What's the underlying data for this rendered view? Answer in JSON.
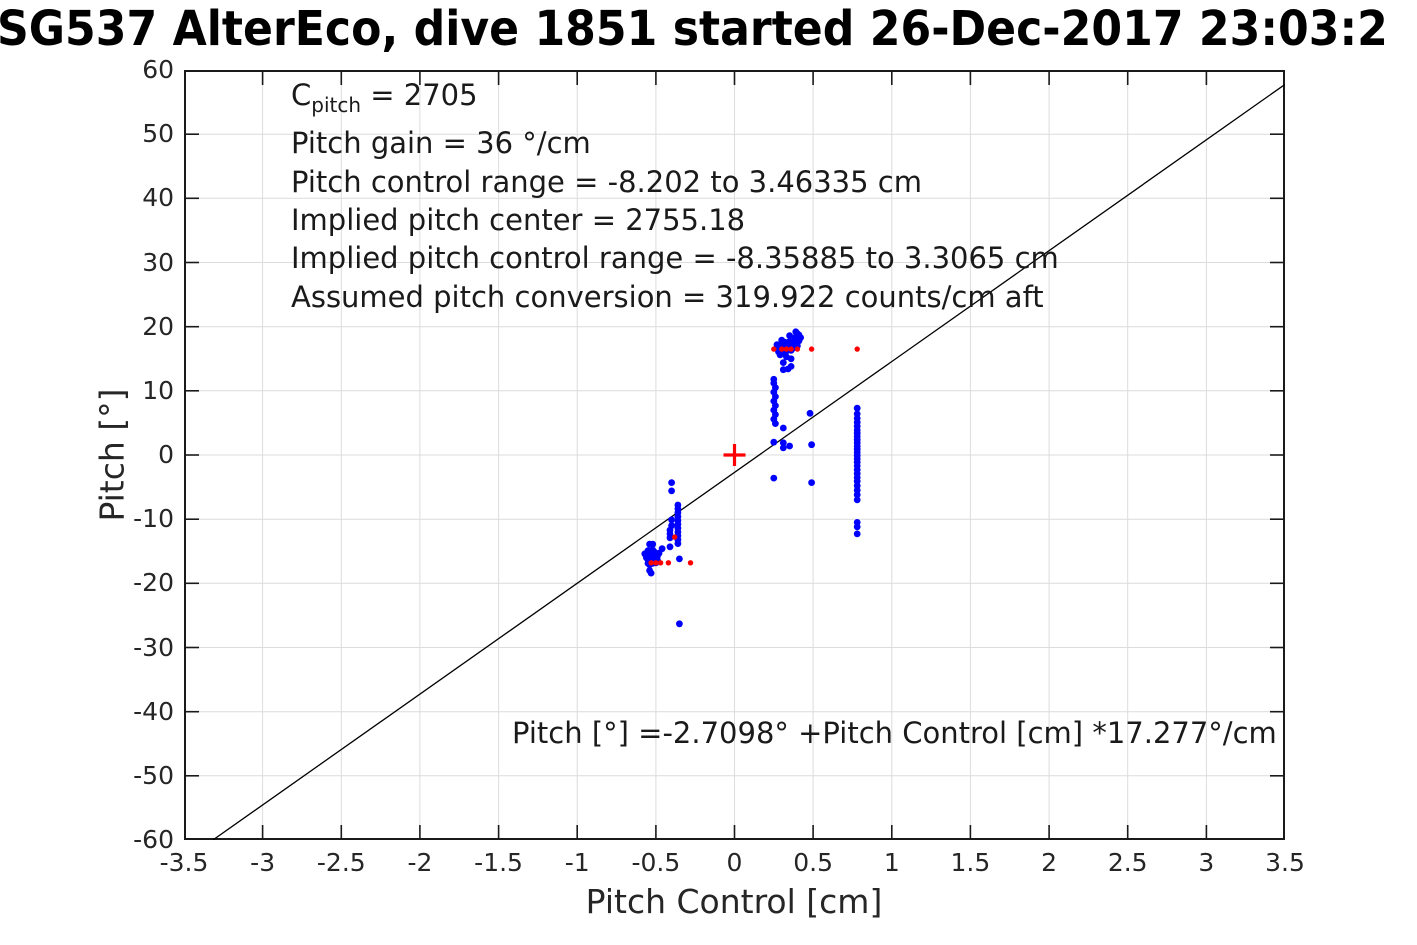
{
  "title": "SG537 AlterEco, dive 1851 started 26-Dec-2017 23:03:2",
  "chart_data": {
    "type": "scatter",
    "title": "SG537 AlterEco, dive 1851 started 26-Dec-2017 23:03:2",
    "xlabel": "Pitch Control [cm]",
    "ylabel": "Pitch [°]",
    "xlim": [
      -3.5,
      3.5
    ],
    "ylim": [
      -60,
      60
    ],
    "grid": true,
    "legend": "none",
    "xticks": [
      -3.5,
      -3,
      -2.5,
      -2,
      -1.5,
      -1,
      -0.5,
      0,
      0.5,
      1,
      1.5,
      2,
      2.5,
      3,
      3.5
    ],
    "xtick_labels": [
      "-3.5",
      "-3",
      "-2.5",
      "-2",
      "-1.5",
      "-1",
      "-0.5",
      "0",
      "0.5",
      "1",
      "1.5",
      "2",
      "2.5",
      "3",
      "3.5"
    ],
    "yticks": [
      -60,
      -50,
      -40,
      -30,
      -20,
      -10,
      0,
      10,
      20,
      30,
      40,
      50,
      60
    ],
    "ytick_labels": [
      "-60",
      "-50",
      "-40",
      "-30",
      "-20",
      "-10",
      "0",
      "10",
      "20",
      "30",
      "40",
      "50",
      "60"
    ],
    "colors": {
      "blue_marker": "#0000ff",
      "red_marker": "#ff0000",
      "fit_line": "#000000",
      "grid": "#dcdcdc",
      "axis": "#1a1a1a"
    },
    "annotations": {
      "info_lines": [
        {
          "segments": [
            [
              "C",
              false
            ],
            [
              "pitch",
              true
            ],
            [
              " = 2705",
              false
            ]
          ]
        },
        {
          "segments": [
            [
              "Pitch gain = 36 °/cm",
              false
            ]
          ]
        },
        {
          "segments": [
            [
              "Pitch control range = -8.202 to 3.46335 cm",
              false
            ]
          ]
        },
        {
          "segments": [
            [
              "Implied pitch center = 2755.18",
              false
            ]
          ]
        },
        {
          "segments": [
            [
              "Implied pitch control range = -8.35885 to 3.3065 cm",
              false
            ]
          ]
        },
        {
          "segments": [
            [
              "Assumed pitch conversion = 319.922 counts/cm aft",
              false
            ]
          ]
        }
      ],
      "fit_equation": "Pitch [°] =-2.7098° +Pitch Control [cm] *17.277°/cm"
    },
    "fit_line": {
      "slope": 17.277,
      "intercept": -2.7098
    },
    "series": [
      {
        "name": "blue_points",
        "marker": "dot",
        "color": "#0000ff",
        "marker_radius": 3.4,
        "points": [
          [
            0.27,
            17.2
          ],
          [
            0.28,
            16.7
          ],
          [
            0.28,
            16.1
          ],
          [
            0.29,
            15.6
          ],
          [
            0.3,
            17.9
          ],
          [
            0.3,
            17.1
          ],
          [
            0.31,
            16.5
          ],
          [
            0.31,
            15.9
          ],
          [
            0.31,
            14.4
          ],
          [
            0.31,
            13.3
          ],
          [
            0.32,
            17.6
          ],
          [
            0.32,
            16.9
          ],
          [
            0.33,
            16.2
          ],
          [
            0.33,
            15.3
          ],
          [
            0.34,
            17.1
          ],
          [
            0.34,
            16.5
          ],
          [
            0.34,
            13.4
          ],
          [
            0.35,
            18.6
          ],
          [
            0.35,
            17.7
          ],
          [
            0.35,
            16.9
          ],
          [
            0.36,
            16.3
          ],
          [
            0.36,
            15.0
          ],
          [
            0.36,
            13.8
          ],
          [
            0.37,
            17.3
          ],
          [
            0.37,
            16.6
          ],
          [
            0.38,
            17.9
          ],
          [
            0.38,
            17.0
          ],
          [
            0.39,
            19.2
          ],
          [
            0.39,
            18.4
          ],
          [
            0.39,
            17.5
          ],
          [
            0.4,
            18.9
          ],
          [
            0.4,
            17.9
          ],
          [
            0.4,
            17.0
          ],
          [
            0.41,
            18.7
          ],
          [
            0.41,
            17.8
          ],
          [
            0.42,
            18.3
          ],
          [
            0.25,
            11.8
          ],
          [
            0.25,
            11.2
          ],
          [
            0.26,
            10.5
          ],
          [
            0.25,
            9.8
          ],
          [
            0.26,
            9.1
          ],
          [
            0.25,
            8.4
          ],
          [
            0.26,
            7.7
          ],
          [
            0.25,
            7.0
          ],
          [
            0.26,
            6.3
          ],
          [
            0.25,
            5.6
          ],
          [
            0.26,
            4.9
          ],
          [
            0.25,
            2.0
          ],
          [
            0.25,
            -3.6
          ],
          [
            0.31,
            4.2
          ],
          [
            0.31,
            1.9
          ],
          [
            0.31,
            1.1
          ],
          [
            0.35,
            1.4
          ],
          [
            0.48,
            6.5
          ],
          [
            0.49,
            1.6
          ],
          [
            0.49,
            -4.3
          ],
          [
            0.78,
            7.3
          ],
          [
            0.78,
            6.4
          ],
          [
            0.78,
            5.7
          ],
          [
            0.78,
            5.1
          ],
          [
            0.78,
            4.5
          ],
          [
            0.78,
            3.9
          ],
          [
            0.78,
            3.4
          ],
          [
            0.78,
            2.9
          ],
          [
            0.78,
            2.4
          ],
          [
            0.78,
            1.9
          ],
          [
            0.78,
            1.4
          ],
          [
            0.78,
            0.9
          ],
          [
            0.78,
            0.4
          ],
          [
            0.78,
            -0.1
          ],
          [
            0.78,
            -0.6
          ],
          [
            0.78,
            -1.1
          ],
          [
            0.78,
            -1.7
          ],
          [
            0.78,
            -2.3
          ],
          [
            0.78,
            -2.9
          ],
          [
            0.78,
            -3.5
          ],
          [
            0.78,
            -4.1
          ],
          [
            0.78,
            -4.8
          ],
          [
            0.78,
            -5.5
          ],
          [
            0.78,
            -6.2
          ],
          [
            0.78,
            -7.0
          ],
          [
            0.78,
            -10.5
          ],
          [
            0.78,
            -11.2
          ],
          [
            0.78,
            -12.3
          ],
          [
            -0.57,
            -15.4
          ],
          [
            -0.56,
            -16.0
          ],
          [
            -0.55,
            -14.9
          ],
          [
            -0.55,
            -15.6
          ],
          [
            -0.55,
            -16.3
          ],
          [
            -0.55,
            -16.9
          ],
          [
            -0.54,
            -13.9
          ],
          [
            -0.54,
            -15.2
          ],
          [
            -0.54,
            -15.8
          ],
          [
            -0.54,
            -16.5
          ],
          [
            -0.54,
            -17.1
          ],
          [
            -0.54,
            -18.0
          ],
          [
            -0.53,
            -15.4
          ],
          [
            -0.53,
            -16.1
          ],
          [
            -0.53,
            -16.7
          ],
          [
            -0.53,
            -18.4
          ],
          [
            -0.52,
            -13.9
          ],
          [
            -0.52,
            -14.8
          ],
          [
            -0.52,
            -15.6
          ],
          [
            -0.52,
            -16.3
          ],
          [
            -0.52,
            -16.9
          ],
          [
            -0.51,
            -15.1
          ],
          [
            -0.51,
            -15.9
          ],
          [
            -0.51,
            -16.6
          ],
          [
            -0.5,
            -15.5
          ],
          [
            -0.5,
            -16.2
          ],
          [
            -0.5,
            -16.8
          ],
          [
            -0.49,
            -15.8
          ],
          [
            -0.49,
            -16.4
          ],
          [
            -0.48,
            -15.3
          ],
          [
            -0.46,
            -14.6
          ],
          [
            -0.41,
            -11.7
          ],
          [
            -0.41,
            -12.3
          ],
          [
            -0.41,
            -12.9
          ],
          [
            -0.41,
            -14.3
          ],
          [
            -0.4,
            -4.3
          ],
          [
            -0.4,
            -5.6
          ],
          [
            -0.4,
            -10.1
          ],
          [
            -0.4,
            -11.0
          ],
          [
            -0.36,
            -7.8
          ],
          [
            -0.36,
            -8.4
          ],
          [
            -0.36,
            -9.0
          ],
          [
            -0.36,
            -9.6
          ],
          [
            -0.36,
            -10.2
          ],
          [
            -0.36,
            -10.8
          ],
          [
            -0.36,
            -11.4
          ],
          [
            -0.36,
            -12.0
          ],
          [
            -0.36,
            -12.6
          ],
          [
            -0.36,
            -13.2
          ],
          [
            -0.36,
            -13.8
          ],
          [
            -0.35,
            -16.2
          ],
          [
            -0.35,
            -26.3
          ]
        ]
      },
      {
        "name": "red_points",
        "marker": "dot",
        "color": "#ff0000",
        "marker_radius": 2.7,
        "points": [
          [
            -0.53,
            -16.8
          ],
          [
            -0.5,
            -16.8
          ],
          [
            -0.47,
            -16.8
          ],
          [
            -0.42,
            -16.8
          ],
          [
            -0.28,
            -16.8
          ],
          [
            -0.38,
            -12.8
          ],
          [
            0.25,
            16.5
          ],
          [
            0.3,
            16.5
          ],
          [
            0.33,
            16.5
          ],
          [
            0.36,
            16.5
          ],
          [
            0.4,
            16.5
          ],
          [
            0.49,
            16.5
          ],
          [
            0.78,
            16.5
          ]
        ]
      },
      {
        "name": "center_marker",
        "marker": "plus",
        "color": "#ff0000",
        "marker_radius": 11,
        "points": [
          [
            0,
            0
          ]
        ]
      }
    ]
  }
}
